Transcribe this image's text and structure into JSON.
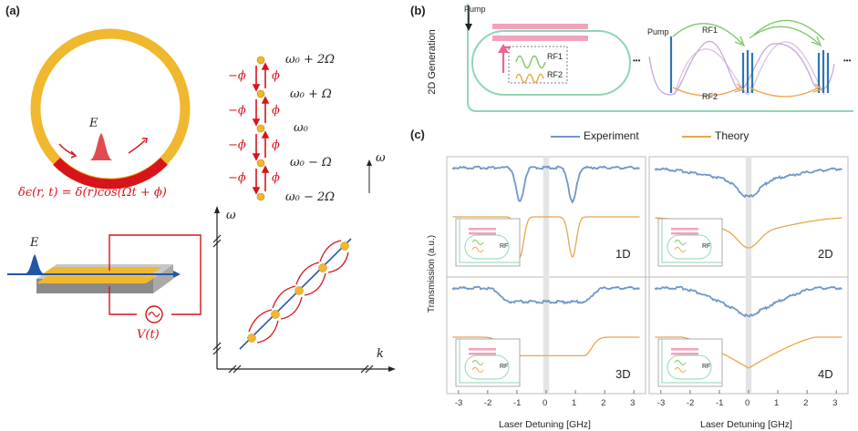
{
  "panel_a": {
    "label": "(a)",
    "field_symbol": "E",
    "modulation_eq": "δϵ(r, t) = δ(r)cos(Ωt + ϕ)",
    "voltage": "V(t)",
    "ladder": {
      "left_phase": "−ϕ",
      "right_phase": "ϕ",
      "levels": [
        "ω₀ + 2Ω",
        "ω₀ + Ω",
        "ω₀",
        "ω₀ − Ω",
        "ω₀ − 2Ω"
      ],
      "axis_label": "ω"
    },
    "dispersion": {
      "y_label": "ω",
      "x_label": "k"
    }
  },
  "panel_b": {
    "label": "(b)",
    "side_title": "2D Generation",
    "pump_label": "Pump",
    "rf1": "RF1",
    "rf2": "RF2",
    "spectrum_pump": "Pump",
    "spectrum_rf1": "RF1",
    "spectrum_rf2": "RF2",
    "ellipsis": "•••"
  },
  "panel_c": {
    "label": "(c)",
    "legend": {
      "experiment": "Experiment",
      "theory": "Theory"
    },
    "ylabel": "Transmission (a.u.)",
    "xlabel": "Laser Detuning [GHz]",
    "ticks": [
      "-3",
      "-2",
      "-1",
      "0",
      "1",
      "2",
      "3"
    ],
    "dims": [
      "1D",
      "2D",
      "3D",
      "4D"
    ],
    "inset_rf": "RF",
    "colors": {
      "experiment": "#6f97c9",
      "theory": "#eaa54a"
    }
  }
}
